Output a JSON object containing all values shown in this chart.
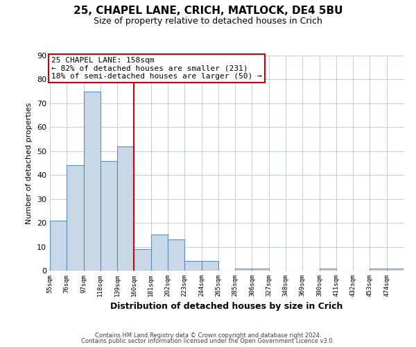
{
  "title": "25, CHAPEL LANE, CRICH, MATLOCK, DE4 5BU",
  "subtitle": "Size of property relative to detached houses in Crich",
  "xlabel": "Distribution of detached houses by size in Crich",
  "ylabel": "Number of detached properties",
  "bin_labels": [
    "55sqm",
    "76sqm",
    "97sqm",
    "118sqm",
    "139sqm",
    "160sqm",
    "181sqm",
    "202sqm",
    "223sqm",
    "244sqm",
    "265sqm",
    "285sqm",
    "306sqm",
    "327sqm",
    "348sqm",
    "369sqm",
    "390sqm",
    "411sqm",
    "432sqm",
    "453sqm",
    "474sqm"
  ],
  "bar_heights": [
    21,
    44,
    75,
    46,
    52,
    9,
    15,
    13,
    4,
    4,
    0,
    1,
    1,
    0,
    0,
    0,
    1,
    0,
    0,
    1,
    1
  ],
  "bar_color": "#c8d8e8",
  "bar_edge_color": "#5b8db8",
  "vline_x": 5,
  "vline_color": "#cc0000",
  "annotation_line1": "25 CHAPEL LANE: 158sqm",
  "annotation_line2": "← 82% of detached houses are smaller (231)",
  "annotation_line3": "18% of semi-detached houses are larger (50) →",
  "annotation_box_color": "#ffffff",
  "annotation_box_edge": "#cc0000",
  "ylim": [
    0,
    90
  ],
  "yticks": [
    0,
    10,
    20,
    30,
    40,
    50,
    60,
    70,
    80,
    90
  ],
  "footer1": "Contains HM Land Registry data © Crown copyright and database right 2024.",
  "footer2": "Contains public sector information licensed under the Open Government Licence v3.0.",
  "bg_color": "#ffffff",
  "grid_color": "#c0cfe0"
}
